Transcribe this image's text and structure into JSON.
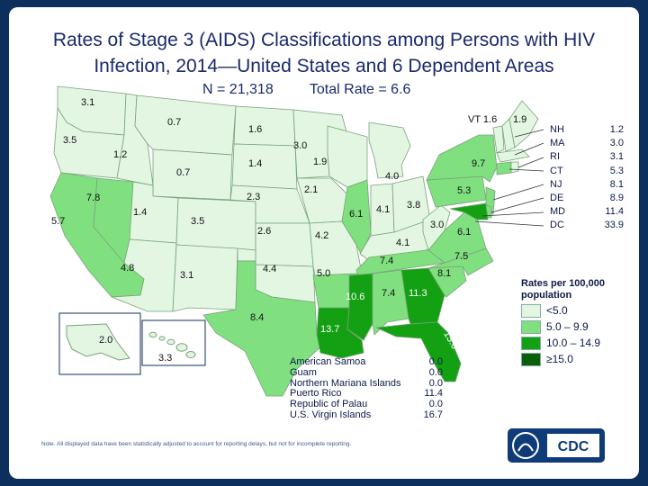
{
  "title": "Rates of Stage 3 (AIDS) Classifications among Persons with HIV Infection, 2014—United States and 6 Dependent Areas",
  "n_total": "N =  21,318",
  "total_rate": "Total Rate = 6.6",
  "colors": {
    "band1": "#e2f6e2",
    "band2": "#80e080",
    "band3": "#13a013",
    "band4": "#0a5f0a",
    "border": "#7aa27a",
    "background": "#0d2f5e"
  },
  "legend": {
    "title": "Rates per 100,000 population",
    "items": [
      {
        "label": "<5.0",
        "color": "#e2f6e2"
      },
      {
        "label": "5.0 – 9.9",
        "color": "#80e080"
      },
      {
        "label": "10.0 – 14.9",
        "color": "#13a013"
      },
      {
        "label": "≥15.0",
        "color": "#0a5f0a"
      }
    ]
  },
  "chart_data": {
    "type": "choropleth",
    "title": "Rates of Stage 3 (AIDS) Classifications among Persons with HIV Infection, 2014—United States and 6 Dependent Areas",
    "unit": "Rates per 100,000 population",
    "states": [
      {
        "state": "WA",
        "rate": "3.1"
      },
      {
        "state": "OR",
        "rate": "3.5"
      },
      {
        "state": "ID",
        "rate": "1.2"
      },
      {
        "state": "MT",
        "rate": "0.7"
      },
      {
        "state": "WY",
        "rate": "0.7"
      },
      {
        "state": "ND",
        "rate": "1.6"
      },
      {
        "state": "SD",
        "rate": "1.4"
      },
      {
        "state": "MN",
        "rate": "3.0"
      },
      {
        "state": "WI",
        "rate": "1.9"
      },
      {
        "state": "MI",
        "rate": "4.0"
      },
      {
        "state": "NE",
        "rate": "2.3"
      },
      {
        "state": "IA",
        "rate": "2.1"
      },
      {
        "state": "IL",
        "rate": "6.1"
      },
      {
        "state": "IN",
        "rate": "4.1"
      },
      {
        "state": "OH",
        "rate": "3.8"
      },
      {
        "state": "NV",
        "rate": "7.8"
      },
      {
        "state": "CA",
        "rate": "5.7"
      },
      {
        "state": "UT",
        "rate": "1.4"
      },
      {
        "state": "CO",
        "rate": "3.5"
      },
      {
        "state": "KS",
        "rate": "2.6"
      },
      {
        "state": "MO",
        "rate": "4.2"
      },
      {
        "state": "KY",
        "rate": "4.1"
      },
      {
        "state": "WV",
        "rate": "3.0"
      },
      {
        "state": "VA",
        "rate": "6.1"
      },
      {
        "state": "PA",
        "rate": "5.3"
      },
      {
        "state": "NY",
        "rate": "9.7"
      },
      {
        "state": "AZ",
        "rate": "4.8"
      },
      {
        "state": "NM",
        "rate": "3.1"
      },
      {
        "state": "OK",
        "rate": "4.4"
      },
      {
        "state": "AR",
        "rate": "5.0"
      },
      {
        "state": "TN",
        "rate": "7.4"
      },
      {
        "state": "NC",
        "rate": "7.5"
      },
      {
        "state": "SC",
        "rate": "8.1"
      },
      {
        "state": "TX",
        "rate": "8.4"
      },
      {
        "state": "LA",
        "rate": "13.7"
      },
      {
        "state": "MS",
        "rate": "10.6"
      },
      {
        "state": "AL",
        "rate": "7.4"
      },
      {
        "state": "GA",
        "rate": "11.3"
      },
      {
        "state": "FL",
        "rate": "13.0"
      },
      {
        "state": "AK",
        "rate": "2.0"
      },
      {
        "state": "HI",
        "rate": "3.3"
      },
      {
        "state": "VT",
        "rate": "1.6"
      },
      {
        "state": "ME",
        "rate": "1.9"
      }
    ],
    "northeast_callout": [
      {
        "state": "NH",
        "rate": "1.2"
      },
      {
        "state": "MA",
        "rate": "3.0"
      },
      {
        "state": "RI",
        "rate": "3.1"
      },
      {
        "state": "CT",
        "rate": "5.3"
      },
      {
        "state": "NJ",
        "rate": "8.1"
      },
      {
        "state": "DE",
        "rate": "8.9"
      },
      {
        "state": "MD",
        "rate": "11.4"
      },
      {
        "state": "DC",
        "rate": "33.9"
      }
    ],
    "dependent_areas": [
      {
        "area": "American Samoa",
        "rate": "0.0"
      },
      {
        "area": "Guam",
        "rate": "0.0"
      },
      {
        "area": "Northern Mariana Islands",
        "rate": "0.0"
      },
      {
        "area": "Puerto Rico",
        "rate": "11.4"
      },
      {
        "area": "Republic of Palau",
        "rate": "0.0"
      },
      {
        "area": "U.S. Virgin Islands",
        "rate": "16.7"
      }
    ]
  },
  "note": "Note. All displayed data have been statistically adjusted to account for reporting delays, but not for incomplete reporting."
}
